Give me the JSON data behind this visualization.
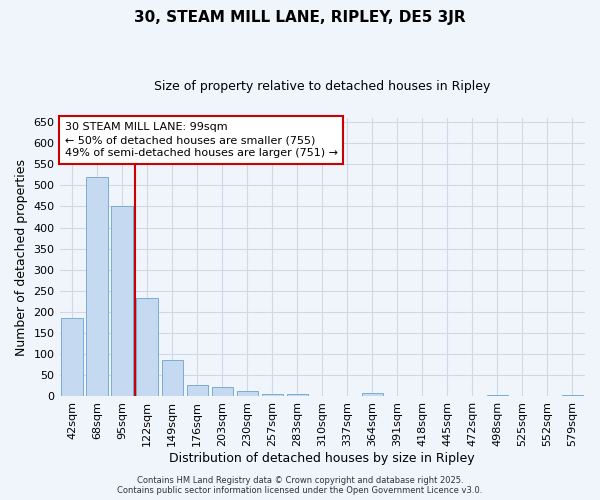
{
  "title": "30, STEAM MILL LANE, RIPLEY, DE5 3JR",
  "subtitle": "Size of property relative to detached houses in Ripley",
  "xlabel": "Distribution of detached houses by size in Ripley",
  "ylabel": "Number of detached properties",
  "bar_color": "#c5d9f0",
  "bar_edge_color": "#7aadd4",
  "background_color": "#f0f4fb",
  "plot_bg_color": "#f0f4fb",
  "grid_color": "#d0d8e8",
  "categories": [
    "42sqm",
    "68sqm",
    "95sqm",
    "122sqm",
    "149sqm",
    "176sqm",
    "203sqm",
    "230sqm",
    "257sqm",
    "283sqm",
    "310sqm",
    "337sqm",
    "364sqm",
    "391sqm",
    "418sqm",
    "445sqm",
    "472sqm",
    "498sqm",
    "525sqm",
    "552sqm",
    "579sqm"
  ],
  "values": [
    185,
    520,
    450,
    232,
    87,
    27,
    22,
    13,
    7,
    6,
    2,
    2,
    8,
    2,
    2,
    2,
    2,
    4,
    2,
    2,
    4
  ],
  "vline_x": 2,
  "vline_color": "#cc0000",
  "annotation_text": "30 STEAM MILL LANE: 99sqm\n← 50% of detached houses are smaller (755)\n49% of semi-detached houses are larger (751) →",
  "annotation_box_facecolor": "#ffffff",
  "annotation_box_edgecolor": "#cc0000",
  "footer_text": "Contains HM Land Registry data © Crown copyright and database right 2025.\nContains public sector information licensed under the Open Government Licence v3.0.",
  "ylim": [
    0,
    660
  ],
  "yticks": [
    0,
    50,
    100,
    150,
    200,
    250,
    300,
    350,
    400,
    450,
    500,
    550,
    600,
    650
  ],
  "title_fontsize": 11,
  "subtitle_fontsize": 9,
  "axis_label_fontsize": 9,
  "tick_fontsize": 8,
  "annotation_fontsize": 8,
  "footer_fontsize": 6
}
